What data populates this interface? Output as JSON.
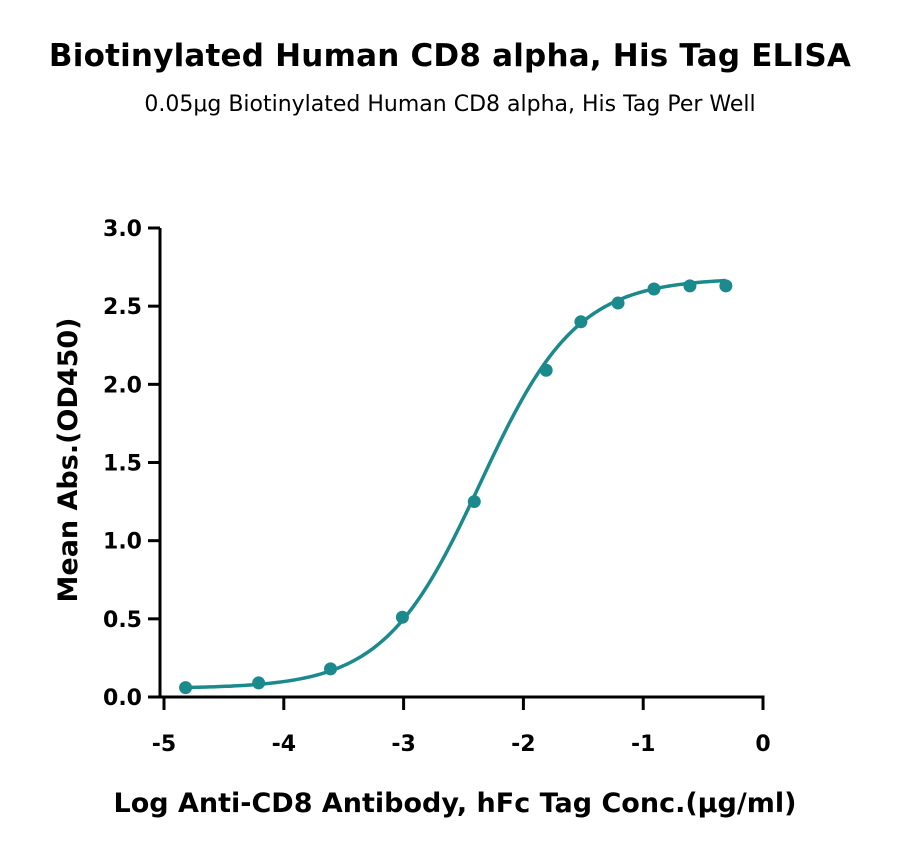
{
  "colors": {
    "series": "#1a8a8c",
    "axis": "#000000"
  },
  "chart_data": {
    "type": "line",
    "title": "Biotinylated Human CD8 alpha, His Tag ELISA",
    "subtitle": "0.05μg Biotinylated Human CD8 alpha, His Tag Per Well",
    "xlabel": "Log Anti-CD8 Antibody, hFc Tag Conc.(μg/ml)",
    "ylabel": "Mean Abs.(OD450)",
    "xlim": [
      -5,
      0
    ],
    "ylim": [
      0,
      3.0
    ],
    "x_ticks": [
      "-5",
      "-4",
      "-3",
      "-2",
      "-1",
      "0"
    ],
    "y_ticks": [
      "0.0",
      "0.5",
      "1.0",
      "1.5",
      "2.0",
      "2.5",
      "3.0"
    ],
    "grid": false,
    "series": [
      {
        "x": [
          -4.82,
          -4.21,
          -3.61,
          -3.01,
          -2.41,
          -1.81,
          -1.52,
          -1.21,
          -0.91,
          -0.61,
          -0.31
        ],
        "y": [
          0.06,
          0.09,
          0.18,
          0.51,
          1.25,
          2.09,
          2.4,
          2.52,
          2.61,
          2.63,
          2.63
        ],
        "fit_curve": true
      }
    ]
  }
}
